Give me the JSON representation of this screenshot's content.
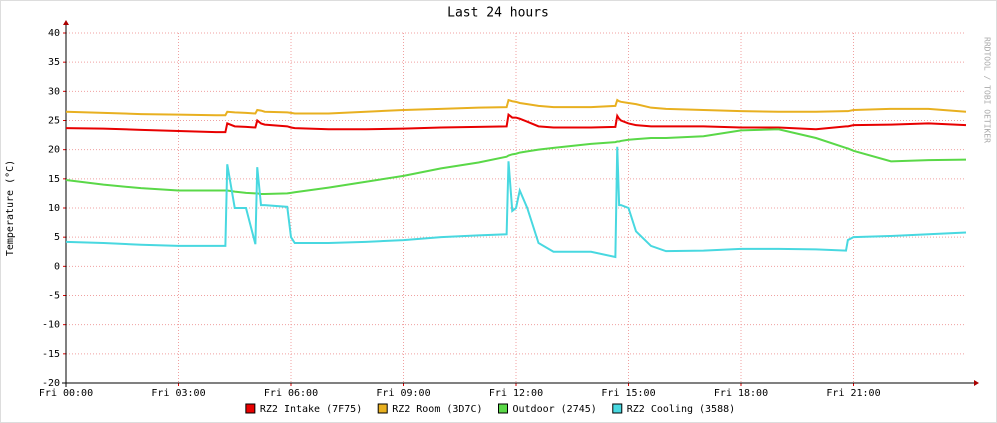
{
  "chart_data": {
    "type": "line",
    "title": "Last 24 hours",
    "ylabel": "Temperature (°C)",
    "watermark": "RRDTOOL / TOBI OETIKER",
    "x": [
      0,
      1,
      2,
      3,
      4,
      4.25,
      4.3,
      4.5,
      4.8,
      5.05,
      5.1,
      5.2,
      5.3,
      5.9,
      6,
      6.1,
      7,
      8,
      9,
      10,
      11,
      11.75,
      11.8,
      11.9,
      12,
      12.1,
      12.3,
      12.6,
      13,
      14,
      14.65,
      14.7,
      14.75,
      14.8,
      15,
      15.2,
      15.6,
      16,
      17,
      18,
      19,
      20,
      20.8,
      20.85,
      21,
      22,
      23,
      24
    ],
    "xlim": [
      0,
      24
    ],
    "xticks": [
      {
        "value": 0,
        "label": "Fri 00:00"
      },
      {
        "value": 3,
        "label": "Fri 03:00"
      },
      {
        "value": 6,
        "label": "Fri 06:00"
      },
      {
        "value": 9,
        "label": "Fri 09:00"
      },
      {
        "value": 12,
        "label": "Fri 12:00"
      },
      {
        "value": 15,
        "label": "Fri 15:00"
      },
      {
        "value": 18,
        "label": "Fri 18:00"
      },
      {
        "value": 21,
        "label": "Fri 21:00"
      }
    ],
    "ylim": [
      -20,
      40
    ],
    "yticks": [
      -20,
      -15,
      -10,
      -5,
      0,
      5,
      10,
      15,
      20,
      25,
      30,
      35,
      40
    ],
    "grid": true,
    "series": [
      {
        "name": "RZ2 Intake (7F75)",
        "color": "#e80000",
        "values": [
          23.7,
          23.6,
          23.4,
          23.2,
          23,
          23,
          24.5,
          24,
          23.9,
          23.8,
          25,
          24.5,
          24.3,
          24,
          23.8,
          23.7,
          23.5,
          23.5,
          23.6,
          23.8,
          23.9,
          24,
          26,
          25.5,
          25.5,
          25.3,
          24.8,
          24,
          23.8,
          23.8,
          23.9,
          25.8,
          25.3,
          25,
          24.5,
          24.2,
          24,
          24,
          24,
          23.8,
          23.8,
          23.5,
          24,
          24,
          24.2,
          24.3,
          24.5,
          24.2
        ]
      },
      {
        "name": "RZ2 Room (3D7C)",
        "color": "#e8b020",
        "values": [
          26.5,
          26.3,
          26.1,
          26,
          25.9,
          25.9,
          26.5,
          26.4,
          26.3,
          26.2,
          26.8,
          26.7,
          26.5,
          26.4,
          26.3,
          26.2,
          26.2,
          26.5,
          26.8,
          27,
          27.2,
          27.3,
          28.5,
          28.3,
          28.2,
          28,
          27.8,
          27.5,
          27.3,
          27.3,
          27.5,
          28.5,
          28.3,
          28.2,
          28,
          27.8,
          27.2,
          27,
          26.8,
          26.6,
          26.5,
          26.5,
          26.6,
          26.6,
          26.8,
          27,
          27,
          26.5
        ]
      },
      {
        "name": "Outdoor (2745)",
        "color": "#5ad848",
        "values": [
          14.8,
          14,
          13.4,
          13,
          13,
          13,
          13,
          12.8,
          12.6,
          12.5,
          12.5,
          12.4,
          12.4,
          12.5,
          12.6,
          12.7,
          13.5,
          14.5,
          15.5,
          16.8,
          17.8,
          18.8,
          19,
          19.2,
          19.3,
          19.5,
          19.7,
          20,
          20.3,
          21,
          21.3,
          21.4,
          21.4,
          21.5,
          21.7,
          21.8,
          22,
          22,
          22.3,
          23.3,
          23.5,
          22,
          20.3,
          20.2,
          19.8,
          18,
          18.2,
          18.3
        ]
      },
      {
        "name": "RZ2 Cooling (3588)",
        "color": "#48d8e0",
        "values": [
          4.2,
          4,
          3.7,
          3.5,
          3.5,
          3.5,
          17.5,
          10,
          10,
          3.8,
          17,
          10.5,
          10.5,
          10.2,
          5,
          4,
          4,
          4.2,
          4.5,
          5,
          5.3,
          5.5,
          18,
          9.5,
          10,
          13,
          10,
          4,
          2.5,
          2.5,
          1.6,
          20.5,
          10.5,
          10.5,
          10,
          6,
          3.5,
          2.6,
          2.7,
          3,
          3,
          2.9,
          2.7,
          4.5,
          5,
          5.2,
          5.5,
          5.8
        ]
      }
    ]
  }
}
